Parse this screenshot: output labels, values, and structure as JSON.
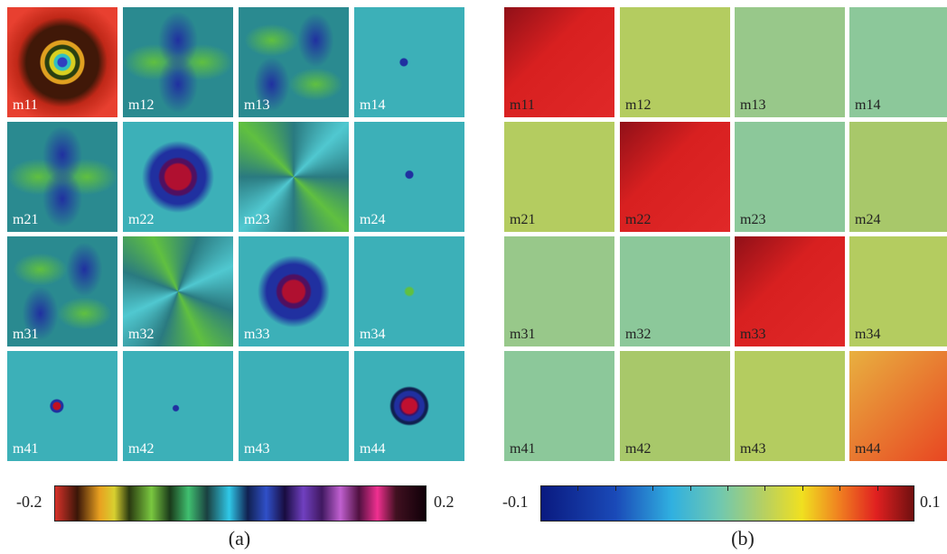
{
  "panels": [
    {
      "caption": "(a)",
      "labels": [
        "m11",
        "m12",
        "m13",
        "m14",
        "m21",
        "m22",
        "m23",
        "m24",
        "m31",
        "m32",
        "m33",
        "m34",
        "m41",
        "m42",
        "m43",
        "m44"
      ],
      "colorbar": {
        "min": -0.2,
        "max": 0.2
      }
    },
    {
      "caption": "(b)",
      "labels": [
        "m11",
        "m12",
        "m13",
        "m14",
        "m21",
        "m22",
        "m23",
        "m24",
        "m31",
        "m32",
        "m33",
        "m34",
        "m41",
        "m42",
        "m43",
        "m44"
      ],
      "colorbar": {
        "min": -0.1,
        "max": 0.1
      }
    }
  ]
}
